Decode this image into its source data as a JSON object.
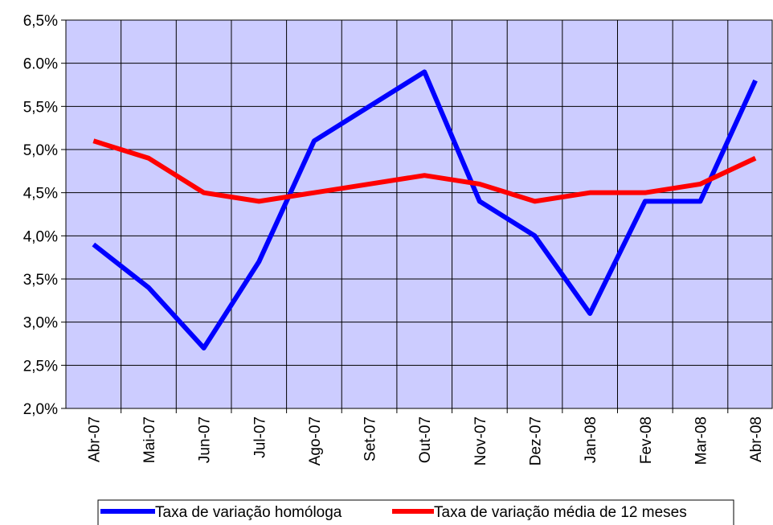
{
  "chart_data": {
    "type": "line",
    "categories": [
      "Abr-07",
      "Mai-07",
      "Jun-07",
      "Jul-07",
      "Ago-07",
      "Set-07",
      "Out-07",
      "Nov-07",
      "Dez-07",
      "Jan-08",
      "Fev-08",
      "Mar-08",
      "Abr-08"
    ],
    "series": [
      {
        "name": "Taxa de variação homóloga",
        "color": "#0000ff",
        "values": [
          3.9,
          3.4,
          2.7,
          3.7,
          5.1,
          5.5,
          5.9,
          4.4,
          4.0,
          3.1,
          4.4,
          4.4,
          5.8
        ]
      },
      {
        "name": "Taxa de variação média de 12 meses",
        "color": "#ff0000",
        "values": [
          5.1,
          4.9,
          4.5,
          4.4,
          4.5,
          4.6,
          4.7,
          4.6,
          4.4,
          4.5,
          4.5,
          4.6,
          4.9
        ]
      }
    ],
    "ylim": [
      2.0,
      6.5
    ],
    "yticks": [
      {
        "value": 2.0,
        "label": "2,0%"
      },
      {
        "value": 2.5,
        "label": "2,5%"
      },
      {
        "value": 3.0,
        "label": "3,0%"
      },
      {
        "value": 3.5,
        "label": "3,5%"
      },
      {
        "value": 4.0,
        "label": "4,0%"
      },
      {
        "value": 4.5,
        "label": "4,5%"
      },
      {
        "value": 5.0,
        "label": "5,0%"
      },
      {
        "value": 5.5,
        "label": "5,5%"
      },
      {
        "value": 6.0,
        "label": "6.0%"
      },
      {
        "value": 6.5,
        "label": "6,5%"
      }
    ],
    "grid": true,
    "legend": "bottom",
    "plot_color": "#ccccff"
  }
}
